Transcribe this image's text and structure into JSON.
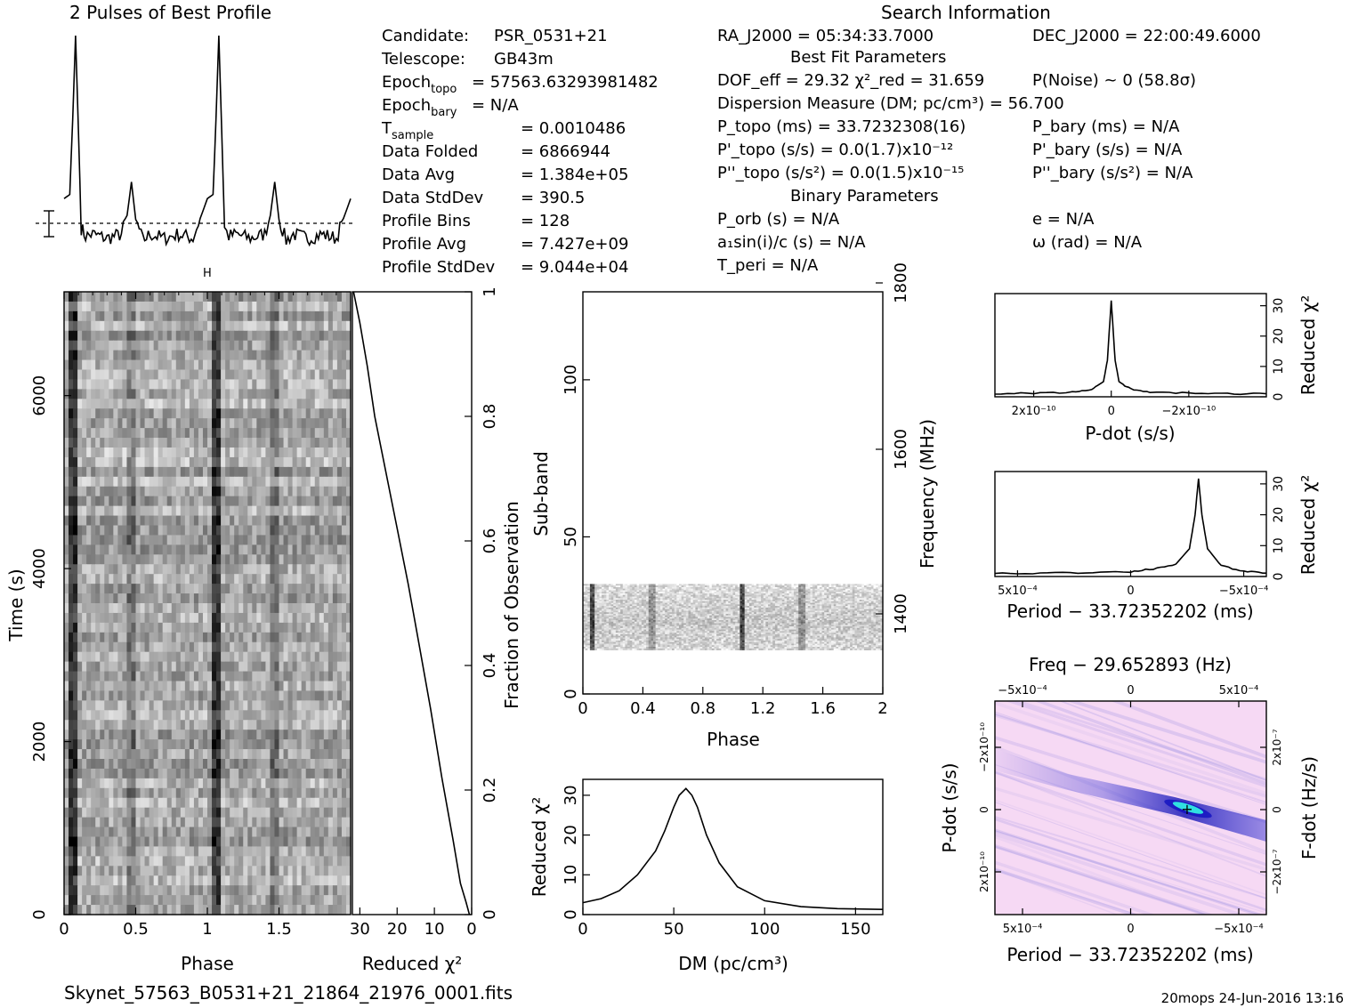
{
  "page": {
    "title": "2 Pulses of Best Profile",
    "search_title": "Search Information",
    "filename": "Skynet_57563_B0531+21_21864_21976_0001.fits",
    "footer": "20mops 24-Jun-2016 13:16"
  },
  "info": {
    "left": [
      {
        "label": "Candidate:",
        "value": "PSR_0531+21"
      },
      {
        "label": "Telescope:",
        "value": "GB43m"
      },
      {
        "label": "Epoch",
        "sub": "topo",
        "value": "= 57563.63293981482"
      },
      {
        "label": "Epoch",
        "sub": "bary",
        "value": "= N/A"
      },
      {
        "label": "T",
        "sub": "sample",
        "value": "=  0.0010486"
      },
      {
        "label": "Data Folded",
        "value": "=  6866944"
      },
      {
        "label": "Data Avg",
        "value": "=  1.384e+05"
      },
      {
        "label": "Data StdDev",
        "value": "=  390.5"
      },
      {
        "label": "Profile Bins",
        "value": "=  128"
      },
      {
        "label": "Profile Avg",
        "value": "=  7.427e+09"
      },
      {
        "label": "Profile StdDev",
        "value": "=  9.044e+04"
      }
    ],
    "ra": "RA_J2000 = 05:34:33.7000",
    "dec": "DEC_J2000 = 22:00:49.6000",
    "best_fit_title": "Best Fit Parameters",
    "dof": "DOF_eff = 29.32   χ²_red = 31.659",
    "pnoise": "P(Noise) ~ 0    (58.8σ)",
    "dm_line": "Dispersion Measure (DM; pc/cm³) = 56.700",
    "p_topo": "P_topo (ms) =  33.7232308(16)",
    "p_bary": "P_bary (ms) = N/A",
    "pd_topo": "P'_topo (s/s) = 0.0(1.7)x10⁻¹²",
    "pd_bary": "P'_bary (s/s) = N/A",
    "pdd_topo": "P''_topo (s/s²) = 0.0(1.5)x10⁻¹⁵",
    "pdd_bary": "P''_bary (s/s²) = N/A",
    "binary_title": "Binary Parameters",
    "porb": "P_orb (s) = N/A",
    "e": "e = N/A",
    "asini": "a₁sin(i)/c (s) = N/A",
    "omega": "ω (rad) = N/A",
    "tperi": "T_peri = N/A"
  },
  "colors": {
    "curve": "#000000",
    "plane_bg": "#f6d9f4",
    "plane_stripe": "#2a2ad0",
    "plane_peak": "#30e0e0"
  },
  "chart_data": [
    {
      "type": "line",
      "panel": "profile",
      "title": "2 Pulses of Best Profile",
      "x": [
        0,
        0.04,
        0.06,
        0.08,
        0.1,
        0.12,
        0.15,
        0.2,
        0.3,
        0.4,
        0.44,
        0.47,
        0.5,
        0.55,
        0.6,
        0.7,
        0.8,
        0.9,
        1.0,
        1.04,
        1.06,
        1.08,
        1.1,
        1.12,
        1.15,
        1.2,
        1.3,
        1.4,
        1.44,
        1.47,
        1.5,
        1.55,
        1.6,
        1.7,
        1.8,
        1.9,
        2.0
      ],
      "y": [
        0.22,
        0.24,
        0.6,
        1.0,
        0.55,
        0.08,
        0.04,
        0.05,
        0.03,
        0.05,
        0.14,
        0.3,
        0.12,
        0.02,
        0.05,
        0.03,
        0.05,
        0.03,
        0.22,
        0.24,
        0.6,
        1.0,
        0.55,
        0.08,
        0.04,
        0.05,
        0.03,
        0.05,
        0.14,
        0.3,
        0.12,
        0.02,
        0.05,
        0.03,
        0.05,
        0.03,
        0.22
      ],
      "xlim": [
        0,
        2
      ],
      "ylim": [
        0,
        1
      ],
      "baseline": 0.1
    },
    {
      "type": "heatmap",
      "panel": "time-phase",
      "xlabel": "Phase",
      "ylabel": "Time (s)",
      "xlim": [
        0,
        2
      ],
      "ylim": [
        0,
        7200
      ],
      "xticks": [
        "0",
        "0.5",
        "1",
        "1.5"
      ],
      "yticks": [
        "0",
        "2000",
        "4000",
        "6000"
      ],
      "pulse_phases": [
        0.06,
        0.46,
        1.06,
        1.46
      ]
    },
    {
      "type": "line",
      "panel": "time-chi2",
      "xlabel": "Reduced χ²",
      "ylabel": "Fraction of Observation",
      "xlim": [
        32,
        0
      ],
      "ylim": [
        0,
        1
      ],
      "xticks": [
        "30",
        "20",
        "10",
        "0"
      ],
      "yticks": [
        "0",
        "0.2",
        "0.4",
        "0.6",
        "0.8",
        "1"
      ],
      "x": [
        0.6,
        1.5,
        3,
        5,
        8,
        11,
        14,
        17,
        20,
        23,
        26,
        28,
        30,
        31.7
      ],
      "y": [
        0,
        0.02,
        0.05,
        0.12,
        0.22,
        0.33,
        0.43,
        0.53,
        0.62,
        0.71,
        0.8,
        0.88,
        0.95,
        1.0
      ]
    },
    {
      "type": "heatmap",
      "panel": "subband-phase",
      "xlabel": "Phase",
      "ylabel": "Sub-band",
      "y2label": "Frequency (MHz)",
      "xlim": [
        0,
        2
      ],
      "ylim": [
        0,
        128
      ],
      "xticks": [
        "0",
        "0.4",
        "0.8",
        "1.2",
        "1.6",
        "2"
      ],
      "yticks": [
        "0",
        "50",
        "100"
      ],
      "y2ticks": [
        "1400",
        "1600",
        "1800"
      ],
      "band": [
        14,
        35
      ],
      "pulse_phases": [
        0.06,
        0.46,
        1.06,
        1.46
      ]
    },
    {
      "type": "line",
      "panel": "dm",
      "xlabel": "DM (pc/cm³)",
      "ylabel": "Reduced χ²",
      "xlim": [
        0,
        165
      ],
      "ylim": [
        0,
        34
      ],
      "xticks": [
        "0",
        "50",
        "100",
        "150"
      ],
      "yticks": [
        "0",
        "10",
        "20",
        "30"
      ],
      "x": [
        0,
        10,
        20,
        30,
        40,
        45,
        50,
        53,
        56.7,
        60,
        63,
        68,
        75,
        85,
        100,
        120,
        140,
        165
      ],
      "y": [
        3,
        4,
        6,
        10,
        16,
        21,
        27,
        30,
        31.7,
        30,
        27,
        20,
        13,
        7,
        3.5,
        2,
        1.5,
        1.3
      ]
    },
    {
      "type": "line",
      "panel": "pdot",
      "xlabel": "P-dot (s/s)",
      "ylabel": "Reduced χ²",
      "xlim": [
        3e-10,
        -4e-10
      ],
      "ylim": [
        0,
        34
      ],
      "xticks": [
        "2x10⁻¹⁰",
        "0",
        "−2x10⁻¹⁰"
      ],
      "yticks": [
        "0",
        "10",
        "20",
        "30"
      ],
      "x": [
        3e-10,
        2e-10,
        1e-10,
        5e-11,
        2e-11,
        1e-11,
        0,
        -1e-11,
        -2e-11,
        -5e-11,
        -1e-10,
        -2e-10,
        -3e-10,
        -4e-10
      ],
      "y": [
        1,
        1.2,
        1.5,
        2.5,
        5,
        12,
        31.7,
        12,
        5,
        2.5,
        1.5,
        1.2,
        1,
        1
      ]
    },
    {
      "type": "line",
      "panel": "period",
      "xlabel": "Period − 33.72352202 (ms)",
      "ylabel": "Reduced χ²",
      "xlim": [
        0.0006,
        -0.0006
      ],
      "ylim": [
        0,
        34
      ],
      "xticks": [
        "5x10⁻⁴",
        "0",
        "−5x10⁻⁴"
      ],
      "yticks": [
        "0",
        "10",
        "20",
        "30"
      ],
      "x": [
        0.0006,
        0.0004,
        0.0002,
        0,
        -0.0001,
        -0.0002,
        -0.00026,
        -0.000285,
        -0.0003,
        -0.000315,
        -0.00034,
        -0.0004,
        -0.0005,
        -0.0006
      ],
      "y": [
        1,
        1.1,
        1.3,
        1.6,
        2.5,
        4,
        9,
        20,
        31.7,
        20,
        9,
        3.5,
        1.6,
        1.1
      ]
    },
    {
      "type": "heatmap",
      "panel": "p-pdot",
      "title": "Freq − 29.652893 (Hz)",
      "xlabel": "Period − 33.72352202 (ms)",
      "ylabel": "P-dot (s/s)",
      "y2label": "F-dot (Hz/s)",
      "xlim": [
        0.0006,
        -0.0006
      ],
      "ylim": [
        3.5e-10,
        -3.5e-10
      ],
      "xticks": [
        "5x10⁻⁴",
        "0",
        "−5x10⁻⁴"
      ],
      "x2ticks": [
        "−5x10⁻⁴",
        "0",
        "5x10⁻⁴"
      ],
      "yticks": [
        "−2x10⁻¹⁰",
        "0",
        "2x10⁻¹⁰"
      ],
      "y2ticks": [
        "2x10⁻⁷",
        "0",
        "−2x10⁻⁷"
      ],
      "peak": {
        "x": -0.00028,
        "y": 0
      }
    }
  ]
}
